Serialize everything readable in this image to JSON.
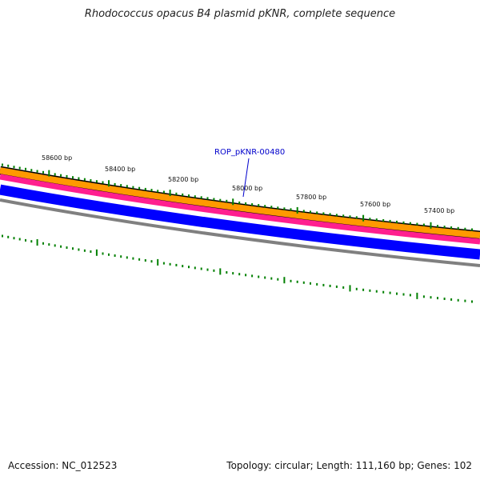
{
  "title": "Rhodococcus opacus B4 plasmid pKNR, complete sequence",
  "accession": "Accession: NC_012523",
  "summary": "Topology: circular; Length: 111,160 bp; Genes: 102",
  "bp_ticks": [
    "58600 bp",
    "58400 bp",
    "58200 bp",
    "58000 bp",
    "57800 bp",
    "57600 bp",
    "57400 bp"
  ],
  "gene_label": "ROP_pKNR-00480",
  "colors": {
    "orange": "#ff9900",
    "pink": "#ff1f8f",
    "blue": "#0000ff",
    "grey": "#808080",
    "tick": "#008000",
    "label": "#0000cc"
  }
}
